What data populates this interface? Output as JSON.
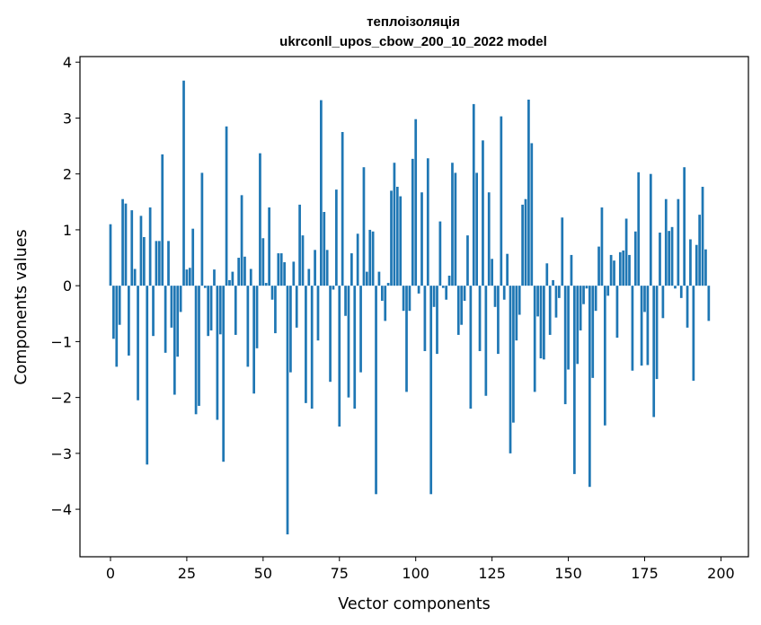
{
  "chart_data": {
    "type": "bar",
    "title": "теплоізоляція",
    "subtitle": "ukrconll_upos_cbow_200_10_2022 model",
    "xlabel": "Vector components",
    "ylabel": "Components values",
    "xlim": [
      -10,
      209
    ],
    "ylim": [
      -4.85,
      4.1
    ],
    "x_ticks": [
      0,
      25,
      50,
      75,
      100,
      125,
      150,
      175,
      200
    ],
    "y_ticks": [
      -4,
      -3,
      -2,
      -1,
      0,
      1,
      2,
      3,
      4
    ],
    "x_tick_labels": [
      "0",
      "25",
      "50",
      "75",
      "100",
      "125",
      "150",
      "175",
      "200"
    ],
    "y_tick_labels": [
      "−4",
      "−3",
      "−2",
      "−1",
      "0",
      "1",
      "2",
      "3",
      "4"
    ],
    "bar_color": "#1f77b4",
    "grid": false,
    "values": [
      1.1,
      -0.95,
      -1.45,
      -0.7,
      1.55,
      1.47,
      -1.25,
      1.35,
      0.3,
      -2.05,
      1.25,
      0.87,
      -3.2,
      1.4,
      -0.9,
      0.8,
      0.8,
      2.35,
      -1.2,
      0.8,
      -0.75,
      -1.95,
      -1.27,
      -0.47,
      3.67,
      0.29,
      0.32,
      1.02,
      -2.3,
      -2.15,
      2.02,
      -0.04,
      -0.9,
      -0.8,
      0.29,
      -2.4,
      -0.87,
      -3.15,
      2.85,
      0.1,
      0.25,
      -0.88,
      0.5,
      1.62,
      0.52,
      -1.45,
      0.3,
      -1.93,
      -1.12,
      2.37,
      0.85,
      0.05,
      1.4,
      -0.25,
      -0.85,
      0.58,
      0.58,
      0.42,
      -4.45,
      -1.55,
      0.43,
      -0.75,
      1.45,
      0.9,
      -2.1,
      0.3,
      -2.2,
      0.64,
      -0.98,
      3.32,
      1.32,
      0.64,
      -1.72,
      -0.07,
      1.72,
      -2.52,
      2.75,
      -0.54,
      -2.0,
      0.58,
      -2.2,
      0.93,
      -1.55,
      2.12,
      0.25,
      1.0,
      0.97,
      -3.73,
      0.25,
      -0.27,
      -0.63,
      0.05,
      1.7,
      2.2,
      1.77,
      1.6,
      -0.45,
      -1.9,
      -0.45,
      2.27,
      2.98,
      -0.14,
      1.67,
      -1.17,
      2.28,
      -3.73,
      -0.38,
      -1.22,
      1.15,
      -0.04,
      -0.25,
      0.18,
      2.2,
      2.02,
      -0.88,
      -0.7,
      -0.27,
      0.9,
      -2.2,
      3.25,
      2.02,
      -1.17,
      2.6,
      -1.97,
      1.67,
      0.48,
      -0.38,
      -1.22,
      3.03,
      -0.25,
      0.57,
      -3.0,
      -2.45,
      -0.98,
      -0.52,
      1.45,
      1.55,
      3.33,
      2.55,
      -1.9,
      -0.55,
      -1.3,
      -1.32,
      0.4,
      -0.88,
      0.1,
      -0.57,
      -0.22,
      1.22,
      -2.12,
      -1.5,
      0.55,
      -3.37,
      -1.4,
      -0.8,
      -0.33,
      -0.05,
      -3.6,
      -1.65,
      -0.45,
      0.7,
      1.4,
      -2.5,
      -0.18,
      0.55,
      0.45,
      -0.93,
      0.6,
      0.63,
      1.2,
      0.55,
      -1.52,
      0.97,
      2.03,
      -1.43,
      -0.47,
      -1.42,
      2.0,
      -2.35,
      -1.67,
      0.95,
      -0.58,
      1.55,
      0.98,
      1.05,
      -0.05,
      1.55,
      -0.22,
      2.12,
      -0.75,
      0.83,
      -1.7,
      0.73,
      1.27,
      1.77,
      0.65,
      -0.63
    ]
  }
}
